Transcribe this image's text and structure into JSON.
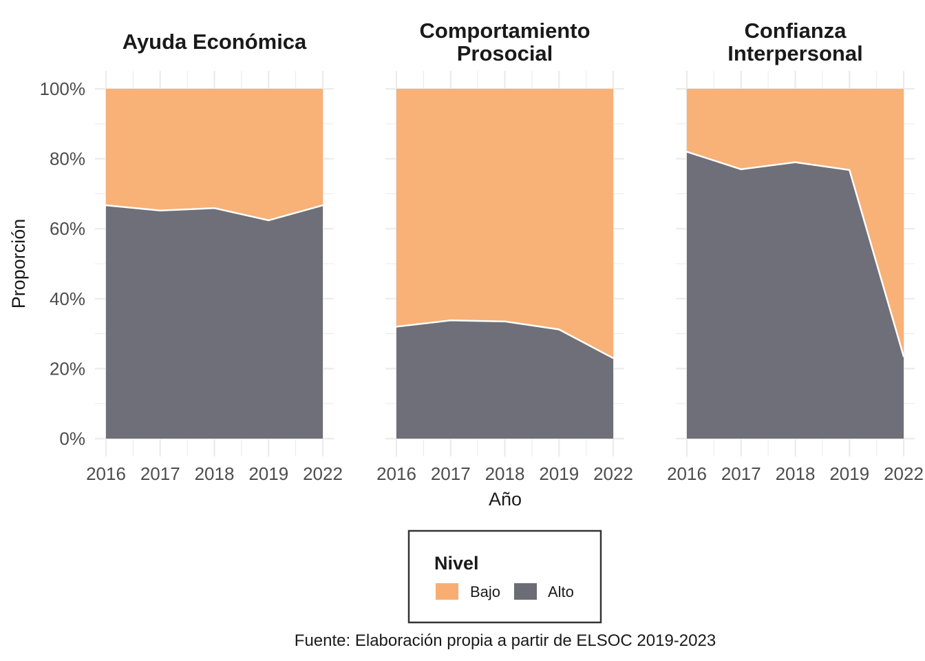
{
  "chart_data": {
    "type": "area",
    "stacked": true,
    "normalized": true,
    "x": [
      "2016",
      "2017",
      "2018",
      "2019",
      "2022"
    ],
    "ylim": [
      0,
      1
    ],
    "y_ticks": [
      "0%",
      "20%",
      "40%",
      "60%",
      "80%",
      "100%"
    ],
    "xlabel": "Año",
    "ylabel": "Proporción",
    "caption": "Fuente: Elaboración propia a partir de ELSOC 2019-2023",
    "grid": true,
    "legend": {
      "title": "Nivel",
      "placement": "bottom",
      "items": [
        {
          "label": "Bajo",
          "color": "#f8ae72"
        },
        {
          "label": "Alto",
          "color": "#6b6c75"
        }
      ]
    },
    "colors": {
      "Bajo": "#f8ae72",
      "Alto": "#6b6c75",
      "boundary": "#ffffff"
    },
    "facets": [
      {
        "title": "Ayuda Económica",
        "series": [
          {
            "name": "Alto",
            "values": [
              0.667,
              0.652,
              0.659,
              0.624,
              0.667
            ]
          },
          {
            "name": "Bajo",
            "values": [
              0.333,
              0.348,
              0.341,
              0.376,
              0.333
            ]
          }
        ]
      },
      {
        "title": "Comportamiento Prosocial",
        "series": [
          {
            "name": "Alto",
            "values": [
              0.32,
              0.338,
              0.335,
              0.312,
              0.23
            ]
          },
          {
            "name": "Bajo",
            "values": [
              0.68,
              0.662,
              0.665,
              0.688,
              0.77
            ]
          }
        ]
      },
      {
        "title": "Confianza Interpersonal",
        "series": [
          {
            "name": "Alto",
            "values": [
              0.82,
              0.77,
              0.79,
              0.768,
              0.235
            ]
          },
          {
            "name": "Bajo",
            "values": [
              0.18,
              0.23,
              0.21,
              0.232,
              0.765
            ]
          }
        ]
      }
    ]
  }
}
